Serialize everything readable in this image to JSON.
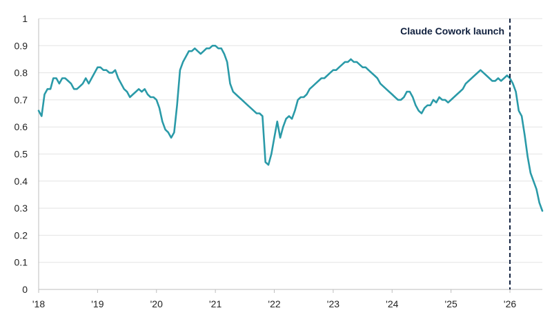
{
  "chart_data": {
    "type": "line",
    "title": "",
    "xlabel": "",
    "ylabel": "",
    "xlim": [
      2018.0,
      2026.55
    ],
    "ylim": [
      0,
      1
    ],
    "grid": "horizontal",
    "x_tick_values": [
      2018,
      2019,
      2020,
      2021,
      2022,
      2023,
      2024,
      2025,
      2026
    ],
    "x_tick_labels": [
      "'18",
      "'19",
      "'20",
      "'21",
      "'22",
      "'23",
      "'24",
      "'25",
      "'26"
    ],
    "y_tick_values": [
      0,
      0.1,
      0.2,
      0.3,
      0.4,
      0.5,
      0.6,
      0.7,
      0.8,
      0.9,
      1
    ],
    "y_tick_labels": [
      "0",
      "0.1",
      "0.2",
      "0.3",
      "0.4",
      "0.5",
      "0.6",
      "0.7",
      "0.8",
      "0.9",
      "1"
    ],
    "series": [
      {
        "color": "#2a9aa8",
        "x": [
          2018.0,
          2018.05,
          2018.1,
          2018.15,
          2018.2,
          2018.25,
          2018.3,
          2018.35,
          2018.4,
          2018.45,
          2018.5,
          2018.55,
          2018.6,
          2018.65,
          2018.7,
          2018.75,
          2018.8,
          2018.85,
          2018.9,
          2018.95,
          2019.0,
          2019.05,
          2019.1,
          2019.15,
          2019.2,
          2019.25,
          2019.3,
          2019.35,
          2019.4,
          2019.45,
          2019.5,
          2019.55,
          2019.6,
          2019.65,
          2019.7,
          2019.75,
          2019.8,
          2019.85,
          2019.9,
          2019.95,
          2020.0,
          2020.05,
          2020.1,
          2020.15,
          2020.2,
          2020.25,
          2020.3,
          2020.35,
          2020.4,
          2020.45,
          2020.5,
          2020.55,
          2020.6,
          2020.65,
          2020.7,
          2020.75,
          2020.8,
          2020.85,
          2020.9,
          2020.95,
          2021.0,
          2021.05,
          2021.1,
          2021.15,
          2021.2,
          2021.25,
          2021.3,
          2021.35,
          2021.4,
          2021.45,
          2021.5,
          2021.55,
          2021.6,
          2021.65,
          2021.7,
          2021.75,
          2021.8,
          2021.85,
          2021.9,
          2021.95,
          2022.0,
          2022.05,
          2022.1,
          2022.15,
          2022.2,
          2022.25,
          2022.3,
          2022.35,
          2022.4,
          2022.45,
          2022.5,
          2022.55,
          2022.6,
          2022.65,
          2022.7,
          2022.75,
          2022.8,
          2022.85,
          2022.9,
          2022.95,
          2023.0,
          2023.05,
          2023.1,
          2023.15,
          2023.2,
          2023.25,
          2023.3,
          2023.35,
          2023.4,
          2023.45,
          2023.5,
          2023.55,
          2023.6,
          2023.65,
          2023.7,
          2023.75,
          2023.8,
          2023.85,
          2023.9,
          2023.95,
          2024.0,
          2024.05,
          2024.1,
          2024.15,
          2024.2,
          2024.25,
          2024.3,
          2024.35,
          2024.4,
          2024.45,
          2024.5,
          2024.55,
          2024.6,
          2024.65,
          2024.7,
          2024.75,
          2024.8,
          2024.85,
          2024.9,
          2024.95,
          2025.0,
          2025.05,
          2025.1,
          2025.15,
          2025.2,
          2025.25,
          2025.3,
          2025.35,
          2025.4,
          2025.45,
          2025.5,
          2025.55,
          2025.6,
          2025.65,
          2025.7,
          2025.75,
          2025.8,
          2025.85,
          2025.9,
          2025.95,
          2026.0,
          2026.05,
          2026.1,
          2026.15,
          2026.2,
          2026.25,
          2026.3,
          2026.35,
          2026.4,
          2026.45,
          2026.5,
          2026.55
        ],
        "values": [
          0.66,
          0.64,
          0.72,
          0.74,
          0.74,
          0.78,
          0.78,
          0.76,
          0.78,
          0.78,
          0.77,
          0.76,
          0.74,
          0.74,
          0.75,
          0.76,
          0.78,
          0.76,
          0.78,
          0.8,
          0.82,
          0.82,
          0.81,
          0.81,
          0.8,
          0.8,
          0.81,
          0.78,
          0.76,
          0.74,
          0.73,
          0.71,
          0.72,
          0.73,
          0.74,
          0.73,
          0.74,
          0.72,
          0.71,
          0.71,
          0.7,
          0.67,
          0.62,
          0.59,
          0.58,
          0.56,
          0.58,
          0.68,
          0.81,
          0.84,
          0.86,
          0.88,
          0.88,
          0.89,
          0.88,
          0.87,
          0.88,
          0.89,
          0.89,
          0.9,
          0.9,
          0.89,
          0.89,
          0.87,
          0.84,
          0.76,
          0.73,
          0.72,
          0.71,
          0.7,
          0.69,
          0.68,
          0.67,
          0.66,
          0.65,
          0.65,
          0.64,
          0.47,
          0.46,
          0.5,
          0.56,
          0.62,
          0.56,
          0.6,
          0.63,
          0.64,
          0.63,
          0.66,
          0.7,
          0.71,
          0.71,
          0.72,
          0.74,
          0.75,
          0.76,
          0.77,
          0.78,
          0.78,
          0.79,
          0.8,
          0.81,
          0.81,
          0.82,
          0.83,
          0.84,
          0.84,
          0.85,
          0.84,
          0.84,
          0.83,
          0.82,
          0.82,
          0.81,
          0.8,
          0.79,
          0.78,
          0.76,
          0.75,
          0.74,
          0.73,
          0.72,
          0.71,
          0.7,
          0.7,
          0.71,
          0.73,
          0.73,
          0.71,
          0.68,
          0.66,
          0.65,
          0.67,
          0.68,
          0.68,
          0.7,
          0.69,
          0.71,
          0.7,
          0.7,
          0.69,
          0.7,
          0.71,
          0.72,
          0.73,
          0.74,
          0.76,
          0.77,
          0.78,
          0.79,
          0.8,
          0.81,
          0.8,
          0.79,
          0.78,
          0.77,
          0.77,
          0.78,
          0.77,
          0.78,
          0.79,
          0.78,
          0.76,
          0.73,
          0.66,
          0.64,
          0.57,
          0.49,
          0.43,
          0.4,
          0.37,
          0.32,
          0.29
        ]
      }
    ],
    "annotations": [
      {
        "x": 2026.0,
        "text": "Claude Cowork launch",
        "line_style": "dashed",
        "color": "#0f1f3d"
      }
    ]
  }
}
